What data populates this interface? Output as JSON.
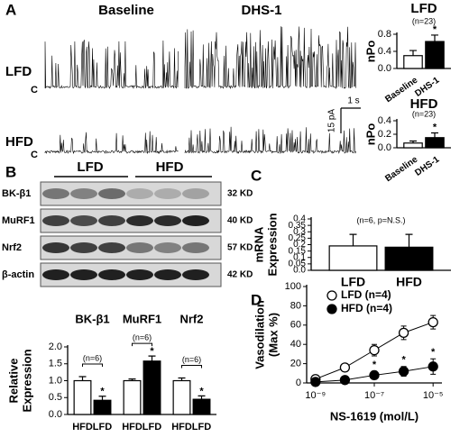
{
  "panel_labels": [
    "A",
    "B",
    "C",
    "D"
  ],
  "panel_a": {
    "conditions": [
      "Baseline",
      "DHS-1"
    ],
    "groups": [
      "LFD",
      "HFD"
    ],
    "closed_label": "C",
    "scale_current": "15 pA",
    "scale_time": "1 s"
  },
  "panel_b_blot": {
    "groups": [
      "LFD",
      "HFD"
    ],
    "proteins": [
      {
        "name": "BK-β1",
        "size": "32 KD"
      },
      {
        "name": "MuRF1",
        "size": "40 KD"
      },
      {
        "name": "Nrf2",
        "size": "57 KD"
      },
      {
        "name": "β-actin",
        "size": "42 KD"
      }
    ]
  },
  "chart_data": [
    {
      "type": "bar",
      "title": "LFD",
      "ylabel": [
        "nPo"
      ],
      "n_label": "(n=23)",
      "significance": "*",
      "categories": [
        "Baseline",
        "DHS-1"
      ],
      "values": [
        0.3,
        0.63
      ],
      "errors": [
        0.12,
        0.15
      ],
      "colors": [
        "#ffffff",
        "#000000"
      ],
      "ylim": [
        0,
        0.8
      ],
      "yticks": [
        {
          "value": 0,
          "label": "0.0"
        },
        {
          "value": 0.4,
          "label": "0.4"
        },
        {
          "value": 0.8,
          "label": "0.8"
        }
      ]
    },
    {
      "type": "bar",
      "title": "HFD",
      "ylabel": [
        "nPo"
      ],
      "n_label": "(n=23)",
      "significance": "*",
      "categories": [
        "Baseline",
        "DHS-1"
      ],
      "values": [
        0.07,
        0.15
      ],
      "errors": [
        0.03,
        0.07
      ],
      "colors": [
        "#ffffff",
        "#000000"
      ],
      "ylim": [
        0,
        0.4
      ],
      "yticks": [
        {
          "value": 0,
          "label": "0.0"
        },
        {
          "value": 0.2,
          "label": "0.2"
        },
        {
          "value": 0.4,
          "label": "0.4"
        }
      ]
    },
    {
      "type": "bar",
      "ylabel": [
        "Relative",
        "Expression"
      ],
      "groups": [
        "BK-β1",
        "MuRF1",
        "Nrf2"
      ],
      "n_labels": [
        "(n=6)",
        "(n=6)",
        "(n=6)"
      ],
      "significance": [
        "*",
        "*",
        "*"
      ],
      "categories": [
        "HFD",
        "LFD",
        "HFD",
        "LFD",
        "HFD",
        "LFD"
      ],
      "values": [
        1.0,
        0.42,
        1.0,
        1.58,
        1.0,
        0.45
      ],
      "errors": [
        0.12,
        0.12,
        0.05,
        0.15,
        0.08,
        0.1
      ],
      "colors": [
        "#ffffff",
        "#000000",
        "#ffffff",
        "#000000",
        "#ffffff",
        "#000000"
      ],
      "ylim": [
        0,
        2
      ],
      "yticks": [
        {
          "value": 0,
          "label": "0.0"
        },
        {
          "value": 0.5,
          "label": "0.5"
        },
        {
          "value": 1,
          "label": "1.0"
        },
        {
          "value": 1.5,
          "label": "1.5"
        },
        {
          "value": 2,
          "label": "2.0"
        }
      ]
    },
    {
      "type": "bar",
      "ylabel": [
        "mRNA",
        "Expression"
      ],
      "n_label": "(n=6, p=N.S.)",
      "categories": [
        "LFD",
        "HFD"
      ],
      "values": [
        0.19,
        0.18
      ],
      "errors": [
        0.09,
        0.1
      ],
      "colors": [
        "#ffffff",
        "#000000"
      ],
      "ylim": [
        0,
        0.4
      ],
      "yticks": [
        {
          "value": 0,
          "label": "0.0"
        },
        0.05,
        0.1,
        0.15,
        0.2,
        0.25,
        0.3,
        0.35,
        0.4
      ]
    },
    {
      "type": "line",
      "ylabel": [
        "Vasodilation",
        "(Max %)"
      ],
      "xlabel": "NS-1619 (mol/L)",
      "xscale": "log",
      "legend": "upper left",
      "significance": [
        "*",
        "*",
        "*"
      ],
      "x": [
        1e-09,
        1e-08,
        1e-07,
        1e-06,
        1e-05
      ],
      "series": [
        {
          "name": "LFD (n=4)",
          "color": "#000000",
          "fill": "#ffffff",
          "values": [
            4,
            16,
            34,
            52,
            63
          ],
          "errors": [
            2,
            4,
            6,
            7,
            7
          ]
        },
        {
          "name": "HFD (n=4)",
          "color": "#000000",
          "fill": "#000000",
          "values": [
            1,
            3,
            8,
            12,
            17
          ],
          "errors": [
            1,
            2,
            4,
            5,
            8
          ]
        }
      ],
      "xlim": [
        5e-10,
        2e-05
      ],
      "xticks": [
        {
          "value": 1e-09,
          "label": "10⁻⁹"
        },
        {
          "value": 1e-07,
          "label": "10⁻⁷"
        },
        {
          "value": 1e-05,
          "label": "10⁻⁵"
        }
      ],
      "ylim": [
        0,
        100
      ],
      "yticks": [
        0,
        20,
        40,
        60,
        80,
        100
      ]
    }
  ]
}
